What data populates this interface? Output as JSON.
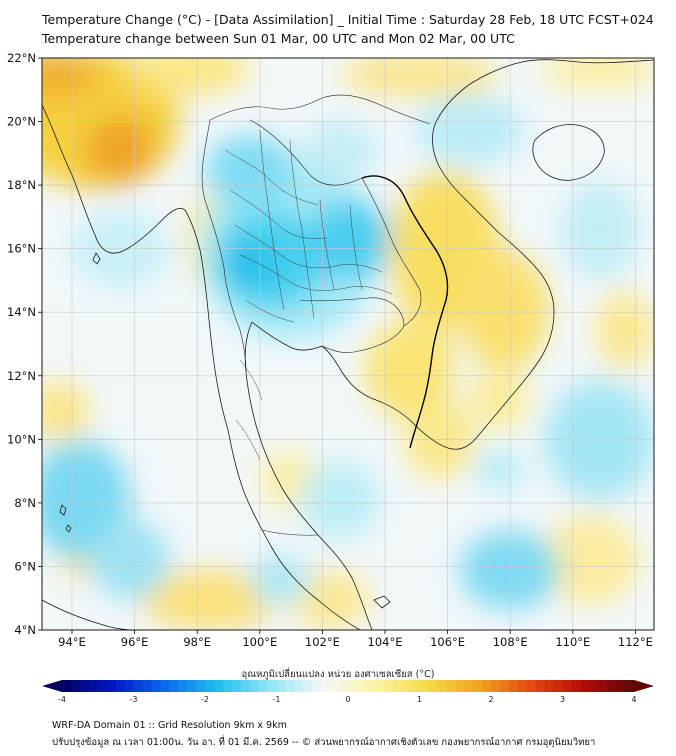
{
  "title_line1": "Temperature Change (°C) - [Data Assimilation] _ Initial Time : Saturday 28 Feb, 18 UTC FCST+024",
  "title_line2": "Temperature change between Sun 01 Mar, 00 UTC and Mon 02 Mar, 00 UTC",
  "lat_labels": [
    "22°N",
    "20°N",
    "18°N",
    "16°N",
    "14°N",
    "12°N",
    "10°N",
    "8°N",
    "6°N",
    "4°N"
  ],
  "lon_labels": [
    "94°E",
    "96°E",
    "98°E",
    "100°E",
    "102°E",
    "104°E",
    "106°E",
    "108°E",
    "110°E",
    "112°E"
  ],
  "colorbar": {
    "title": "อุณหภูมิเปลี่ยนแปลง หน่วย องศาเซลเซียส (°C)",
    "labels": [
      "-4",
      "-3",
      "-2",
      "-1",
      "0",
      "1",
      "2",
      "3",
      "4"
    ],
    "min": -4,
    "max": 4,
    "stops": [
      "#060060",
      "#0018c8",
      "#0c6cf0",
      "#1ec0ee",
      "#92e6f6",
      "#f4f8f8",
      "#fcf4a8",
      "#f6dc48",
      "#f0a620",
      "#e44a10",
      "#b40c08",
      "#600808"
    ]
  },
  "footer_line1": "WRF-DA Domain 01 :: Grid Resolution 9km x 9km",
  "footer_line2": "ปรับปรุงข้อมูล ณ เวลา 01:00น. วัน อา. ที่ 01 มี.ค. 2569 -- © ส่วนพยากรณ์อากาศเชิงตัวเลข กองพยากรณ์อากาศ กรมอุตุนิยมวิทยา"
}
